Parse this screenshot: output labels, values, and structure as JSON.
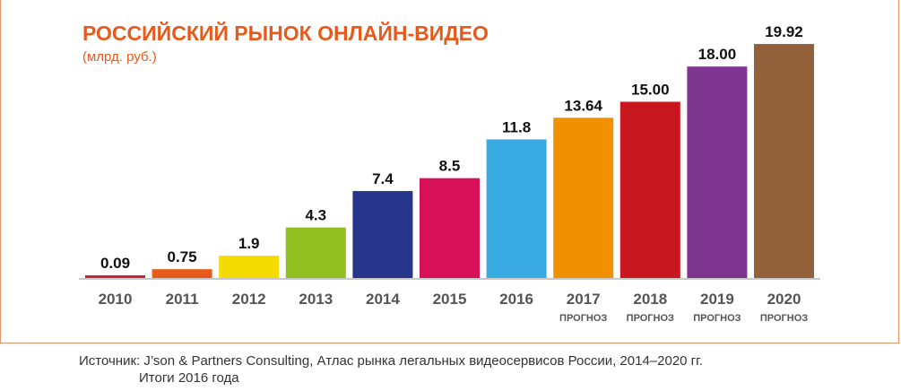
{
  "chart_data": {
    "type": "bar",
    "title": "РОССИЙСКИЙ РЫНОК ОНЛАЙН-ВИДЕО",
    "subtitle": "(млрд. руб.)",
    "categories": [
      "2010",
      "2011",
      "2012",
      "2013",
      "2014",
      "2015",
      "2016",
      "2017",
      "2018",
      "2019",
      "2020"
    ],
    "values": [
      0.09,
      0.75,
      1.9,
      4.3,
      7.4,
      8.5,
      11.8,
      13.64,
      15.0,
      18.0,
      19.92
    ],
    "value_labels": [
      "0.09",
      "0.75",
      "1.9",
      "4.3",
      "7.4",
      "8.5",
      "11.8",
      "13.64",
      "15.00",
      "18.00",
      "19.92"
    ],
    "sublabels": [
      "",
      "",
      "",
      "",
      "",
      "",
      "",
      "ПРОГНОЗ",
      "ПРОГНОЗ",
      "ПРОГНОЗ",
      "ПРОГНОЗ"
    ],
    "colors": [
      "#d0203c",
      "#e85a1c",
      "#f5dc00",
      "#92c020",
      "#26348c",
      "#d81058",
      "#3aaae2",
      "#f29100",
      "#c8171f",
      "#7e3590",
      "#92603a"
    ],
    "ylim": [
      0,
      20
    ],
    "xlabel": "",
    "ylabel": "",
    "grid": false,
    "legend": "none"
  },
  "source": {
    "line1": "Источник: J’son & Partners Consulting, Атлас рынка легальных видеосервисов России, 2014–2020 гг.",
    "line2": "Итоги 2016 года"
  }
}
